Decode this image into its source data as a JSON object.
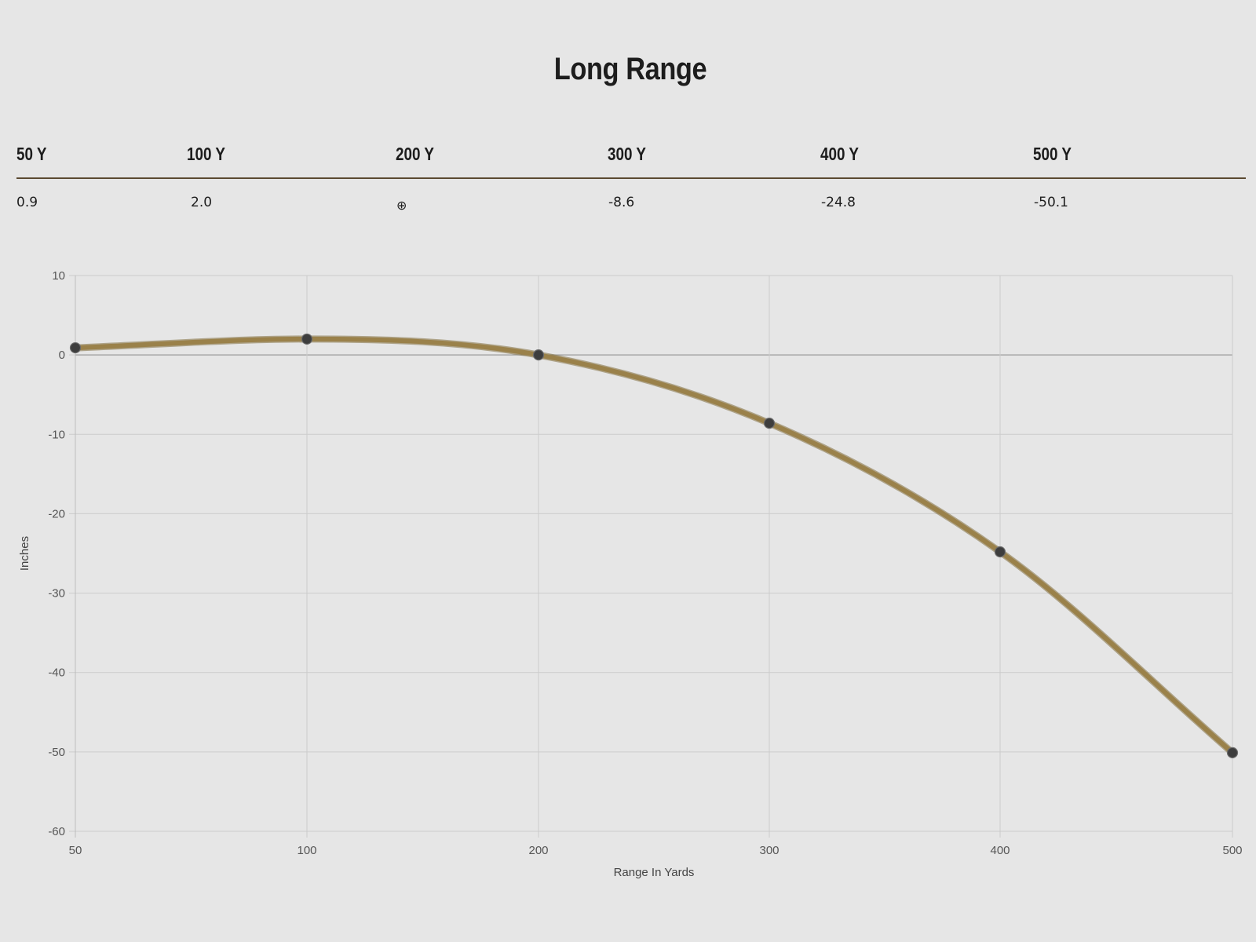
{
  "title": "Long Range",
  "table": {
    "headers": [
      "50 Y",
      "100 Y",
      "200 Y",
      "300 Y",
      "400 Y",
      "500 Y"
    ],
    "values": [
      "0.9",
      "2.0",
      "⊕",
      "-8.6",
      "-24.8",
      "-50.1"
    ],
    "zero_icon": "crosshair-icon"
  },
  "colors": {
    "line": "#9a814a",
    "point": "#3d3d3d",
    "divider": "#5b4a32",
    "background": "#e6e6e6"
  },
  "chart_data": {
    "type": "line",
    "x": [
      50,
      100,
      200,
      300,
      400,
      500
    ],
    "series": [
      {
        "values": [
          0.9,
          2.0,
          0,
          -8.6,
          -24.8,
          -50.1
        ]
      }
    ],
    "xlabel": "Range In Yards",
    "ylabel": "Inches",
    "x_ticks": [
      "50",
      "100",
      "200",
      "300",
      "400",
      "500"
    ],
    "y_ticks": [
      "10",
      "0",
      "-10",
      "-20",
      "-30",
      "-40",
      "-50",
      "-60"
    ],
    "ylim": [
      -60,
      10
    ],
    "grid": true,
    "legend": "none"
  }
}
